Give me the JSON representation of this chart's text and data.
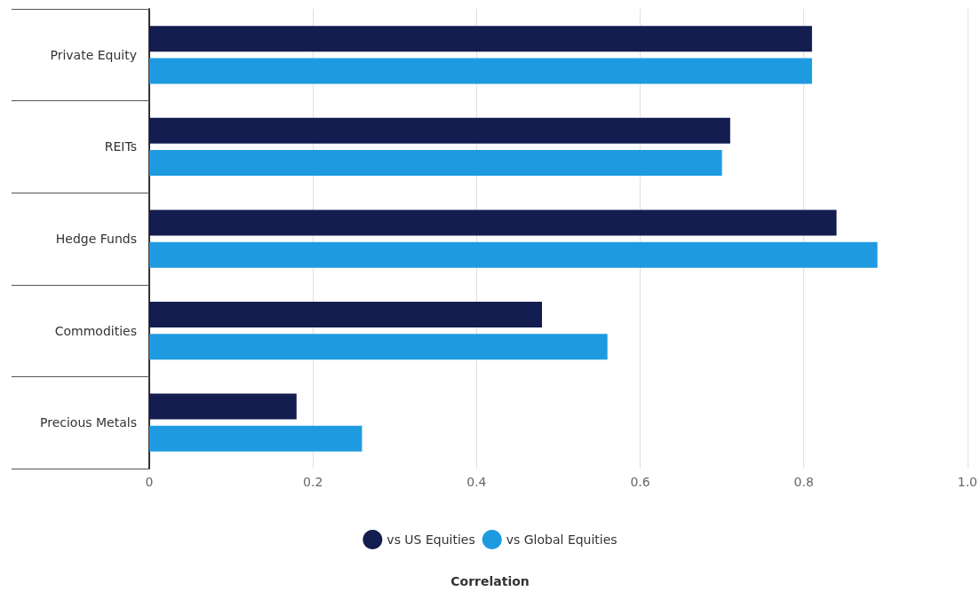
{
  "chart_data": {
    "type": "bar",
    "orientation": "horizontal",
    "annotations": [
      "Correlation"
    ],
    "categories": [
      "Private Equity",
      "REITs",
      "Hedge Funds",
      "Commodities",
      "Precious Metals"
    ],
    "series": [
      {
        "name": "vs US Equities",
        "color": "#141d4f",
        "values": [
          0.81,
          0.71,
          0.84,
          0.48,
          0.18
        ]
      },
      {
        "name": "vs Global Equities",
        "color": "#1e9be0",
        "values": [
          0.81,
          0.7,
          0.89,
          0.56,
          0.26
        ]
      }
    ],
    "xlim": [
      0,
      1
    ],
    "xticks": [
      0,
      0.2,
      0.4,
      0.6,
      0.8,
      {
        "value": 1,
        "label": "1.0"
      }
    ],
    "grid": "x",
    "legend": "bottom"
  }
}
